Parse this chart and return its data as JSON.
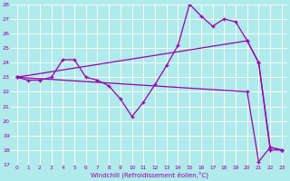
{
  "xlabel": "Windchill (Refroidissement éolien,°C)",
  "xlim": [
    -0.5,
    23.5
  ],
  "ylim": [
    17,
    28
  ],
  "yticks": [
    17,
    18,
    19,
    20,
    21,
    22,
    23,
    24,
    25,
    26,
    27,
    28
  ],
  "xticks": [
    0,
    1,
    2,
    3,
    4,
    5,
    6,
    7,
    8,
    9,
    10,
    11,
    12,
    13,
    14,
    15,
    16,
    17,
    18,
    19,
    20,
    21,
    22,
    23
  ],
  "bg_color": "#b0eaea",
  "grid_color": "#ffffff",
  "line_color": "#9900aa",
  "line1_x": [
    0,
    1,
    2,
    3,
    4,
    5,
    6,
    7,
    8,
    9,
    10,
    11,
    12,
    13,
    14,
    15,
    16,
    17,
    18,
    19,
    20,
    21,
    22,
    23
  ],
  "line1_y": [
    23.0,
    22.8,
    22.8,
    23.0,
    24.2,
    24.2,
    23.0,
    22.8,
    22.4,
    21.5,
    20.3,
    21.3,
    22.5,
    23.8,
    25.2,
    28.0,
    27.2,
    26.5,
    27.0,
    26.8,
    25.5,
    24.0,
    18.2,
    18.0
  ],
  "line2_x": [
    0,
    20,
    21,
    22,
    23
  ],
  "line2_y": [
    23.0,
    25.5,
    24.0,
    18.0,
    18.0
  ],
  "line3_x": [
    0,
    20,
    21,
    22,
    23
  ],
  "line3_y": [
    23.0,
    22.0,
    17.2,
    18.2,
    18.0
  ]
}
